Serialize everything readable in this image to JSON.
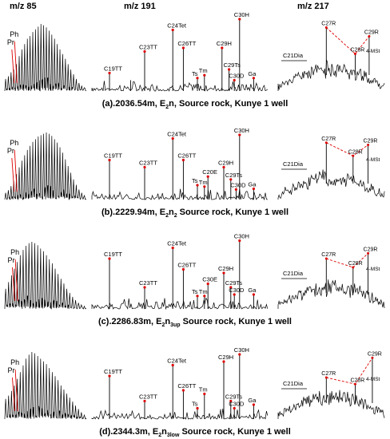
{
  "column_headers": [
    "m/z 85",
    "m/z 191",
    "m/z 217"
  ],
  "chart_data": [
    {
      "type": "chromatogram",
      "caption": {
        "prefix": "(a).2036.54m,  E",
        "sub": "2",
        "mid": "n,  Source rock,  Kunye 1 well",
        "subscript2": ""
      },
      "mz85": {
        "peaks": [
          0.18,
          0.22,
          0.28,
          0.32,
          0.4,
          0.52,
          0.62,
          0.7,
          0.78,
          0.82,
          0.88,
          0.92,
          0.96,
          1.0,
          0.98,
          0.95,
          0.9,
          0.84,
          0.78,
          0.7,
          0.62,
          0.55,
          0.48,
          0.4,
          0.32,
          0.25,
          0.18,
          0.12,
          0.08,
          0.05
        ],
        "labels": [
          "Pr",
          "Ph"
        ]
      },
      "mz191": {
        "peaks": [
          {
            "pos": 0.1,
            "h": 0.25,
            "label": "C19TT"
          },
          {
            "pos": 0.22,
            "h": 0.15
          },
          {
            "pos": 0.3,
            "h": 0.55,
            "label": "C23TT"
          },
          {
            "pos": 0.46,
            "h": 0.85,
            "label": "C24Tet"
          },
          {
            "pos": 0.52,
            "h": 0.6,
            "label": "C26TT"
          },
          {
            "pos": 0.6,
            "h": 0.18,
            "label": "Ts"
          },
          {
            "pos": 0.64,
            "h": 0.22,
            "label": "Tm"
          },
          {
            "pos": 0.74,
            "h": 0.6,
            "label": "C29H"
          },
          {
            "pos": 0.78,
            "h": 0.3,
            "label": "C29Ts"
          },
          {
            "pos": 0.81,
            "h": 0.15,
            "label": "C30D"
          },
          {
            "pos": 0.84,
            "h": 1.0,
            "label": "C30H"
          },
          {
            "pos": 0.92,
            "h": 0.18,
            "label": "Ga"
          }
        ]
      },
      "mz217": {
        "labels": [
          "C21Dia",
          "C27R",
          "C28R",
          "C29R",
          "4-MSt"
        ],
        "peaks": [
          {
            "pos": 0.45,
            "h": 0.9
          },
          {
            "pos": 0.72,
            "h": 0.3
          },
          {
            "pos": 0.85,
            "h": 0.7
          }
        ]
      }
    },
    {
      "type": "chromatogram",
      "caption": {
        "prefix": "(b).2229.94m,  E",
        "sub": "2",
        "mid": "n",
        "subscript2": "2",
        "suffix": "  Source rock,  Kunye 1 well"
      },
      "mz85": {
        "peaks": [
          0.1,
          0.14,
          0.2,
          0.28,
          0.38,
          0.48,
          0.58,
          0.66,
          0.74,
          0.8,
          0.86,
          0.9,
          0.94,
          0.96,
          0.98,
          1.0,
          0.98,
          0.95,
          0.9,
          0.85,
          0.78,
          0.7,
          0.6,
          0.5,
          0.4,
          0.3,
          0.22,
          0.15,
          0.1,
          0.06
        ],
        "labels": [
          "Pr",
          "Ph"
        ]
      },
      "mz191": {
        "peaks": [
          {
            "pos": 0.1,
            "h": 0.55,
            "label": "C19TT"
          },
          {
            "pos": 0.3,
            "h": 0.45,
            "label": "C23TT"
          },
          {
            "pos": 0.46,
            "h": 0.85,
            "label": "C24Tet"
          },
          {
            "pos": 0.52,
            "h": 0.55,
            "label": "C26TT"
          },
          {
            "pos": 0.6,
            "h": 0.2,
            "label": "Ts"
          },
          {
            "pos": 0.64,
            "h": 0.18,
            "label": "Tm"
          },
          {
            "pos": 0.66,
            "h": 0.32,
            "label": "C20E"
          },
          {
            "pos": 0.75,
            "h": 0.45,
            "label": "C29H"
          },
          {
            "pos": 0.79,
            "h": 0.28,
            "label": "C29Ts"
          },
          {
            "pos": 0.82,
            "h": 0.14,
            "label": "C30D"
          },
          {
            "pos": 0.84,
            "h": 0.9,
            "label": "C30H"
          },
          {
            "pos": 0.92,
            "h": 0.15,
            "label": "Ga"
          }
        ]
      },
      "mz217": {
        "labels": [
          "C21Dia",
          "C27R",
          "C28R",
          "C29R",
          "4-MSt"
        ],
        "peaks": [
          {
            "pos": 0.45,
            "h": 0.75
          },
          {
            "pos": 0.7,
            "h": 0.45
          },
          {
            "pos": 0.84,
            "h": 0.7
          }
        ]
      }
    },
    {
      "type": "chromatogram",
      "caption": {
        "prefix": "(c).2286.83m,  E",
        "sub": "2",
        "mid": "n",
        "subscript2": "3up",
        "suffix": "  Source rock,  Kunye 1 well"
      },
      "mz85": {
        "peaks": [
          0.3,
          0.4,
          0.5,
          0.6,
          0.7,
          0.8,
          0.88,
          0.94,
          0.98,
          1.0,
          0.98,
          0.95,
          0.9,
          0.86,
          0.8,
          0.74,
          0.68,
          0.6,
          0.52,
          0.45,
          0.38,
          0.3,
          0.24,
          0.18,
          0.13,
          0.09,
          0.06,
          0.04
        ],
        "labels": [
          "Pr",
          "Ph"
        ]
      },
      "mz191": {
        "peaks": [
          {
            "pos": 0.1,
            "h": 0.7,
            "label": "C19TT"
          },
          {
            "pos": 0.3,
            "h": 0.3,
            "label": "C23TT"
          },
          {
            "pos": 0.46,
            "h": 0.85,
            "label": "C24Tet"
          },
          {
            "pos": 0.52,
            "h": 0.55,
            "label": "C26TT"
          },
          {
            "pos": 0.6,
            "h": 0.18,
            "label": "Ts"
          },
          {
            "pos": 0.64,
            "h": 0.18,
            "label": "Tm"
          },
          {
            "pos": 0.66,
            "h": 0.35,
            "label": "C30E"
          },
          {
            "pos": 0.75,
            "h": 0.5,
            "label": "C29H"
          },
          {
            "pos": 0.79,
            "h": 0.3,
            "label": "C29Ts"
          },
          {
            "pos": 0.81,
            "h": 0.2,
            "label": "C30D"
          },
          {
            "pos": 0.84,
            "h": 0.95,
            "label": "C30H"
          },
          {
            "pos": 0.92,
            "h": 0.2,
            "label": "Ga"
          }
        ]
      },
      "mz217": {
        "labels": [
          "C21Dia",
          "C27R",
          "C28R",
          "C29R",
          "4-MSt"
        ],
        "peaks": [
          {
            "pos": 0.45,
            "h": 0.6
          },
          {
            "pos": 0.7,
            "h": 0.4
          },
          {
            "pos": 0.84,
            "h": 0.72
          }
        ]
      }
    },
    {
      "type": "chromatogram",
      "caption": {
        "prefix": "(d).2344.3m,  E",
        "sub": "2",
        "mid": "n",
        "subscript2": "3low",
        "suffix": "  Source rock,  Kunye 1 well"
      },
      "mz85": {
        "peaks": [
          0.3,
          0.35,
          0.42,
          0.5,
          0.6,
          0.7,
          0.8,
          0.9,
          0.96,
          1.0,
          0.98,
          0.94,
          0.9,
          0.86,
          0.82,
          0.76,
          0.7,
          0.64,
          0.58,
          0.5,
          0.44,
          0.38,
          0.32,
          0.26,
          0.2,
          0.15,
          0.1,
          0.06
        ],
        "labels": [
          "Pr",
          "Ph"
        ]
      },
      "mz191": {
        "peaks": [
          {
            "pos": 0.1,
            "h": 0.6,
            "label": "C19TT"
          },
          {
            "pos": 0.3,
            "h": 0.25,
            "label": "C23TT"
          },
          {
            "pos": 0.46,
            "h": 0.75,
            "label": "C24Tet"
          },
          {
            "pos": 0.52,
            "h": 0.4,
            "label": "C26TT"
          },
          {
            "pos": 0.6,
            "h": 0.15,
            "label": "Ts"
          },
          {
            "pos": 0.64,
            "h": 0.35,
            "label": "Tm"
          },
          {
            "pos": 0.75,
            "h": 0.8,
            "label": "C29H"
          },
          {
            "pos": 0.79,
            "h": 0.25,
            "label": "C29Ts"
          },
          {
            "pos": 0.81,
            "h": 0.15,
            "label": "C30D"
          },
          {
            "pos": 0.84,
            "h": 0.9,
            "label": "C30H"
          },
          {
            "pos": 0.92,
            "h": 0.2,
            "label": "Ga"
          }
        ]
      },
      "mz217": {
        "labels": [
          "C21Dia",
          "C27R",
          "C28R",
          "C29R",
          "4-MSt"
        ],
        "peaks": [
          {
            "pos": 0.45,
            "h": 0.4
          },
          {
            "pos": 0.72,
            "h": 0.25
          },
          {
            "pos": 0.88,
            "h": 0.85
          }
        ]
      }
    }
  ]
}
